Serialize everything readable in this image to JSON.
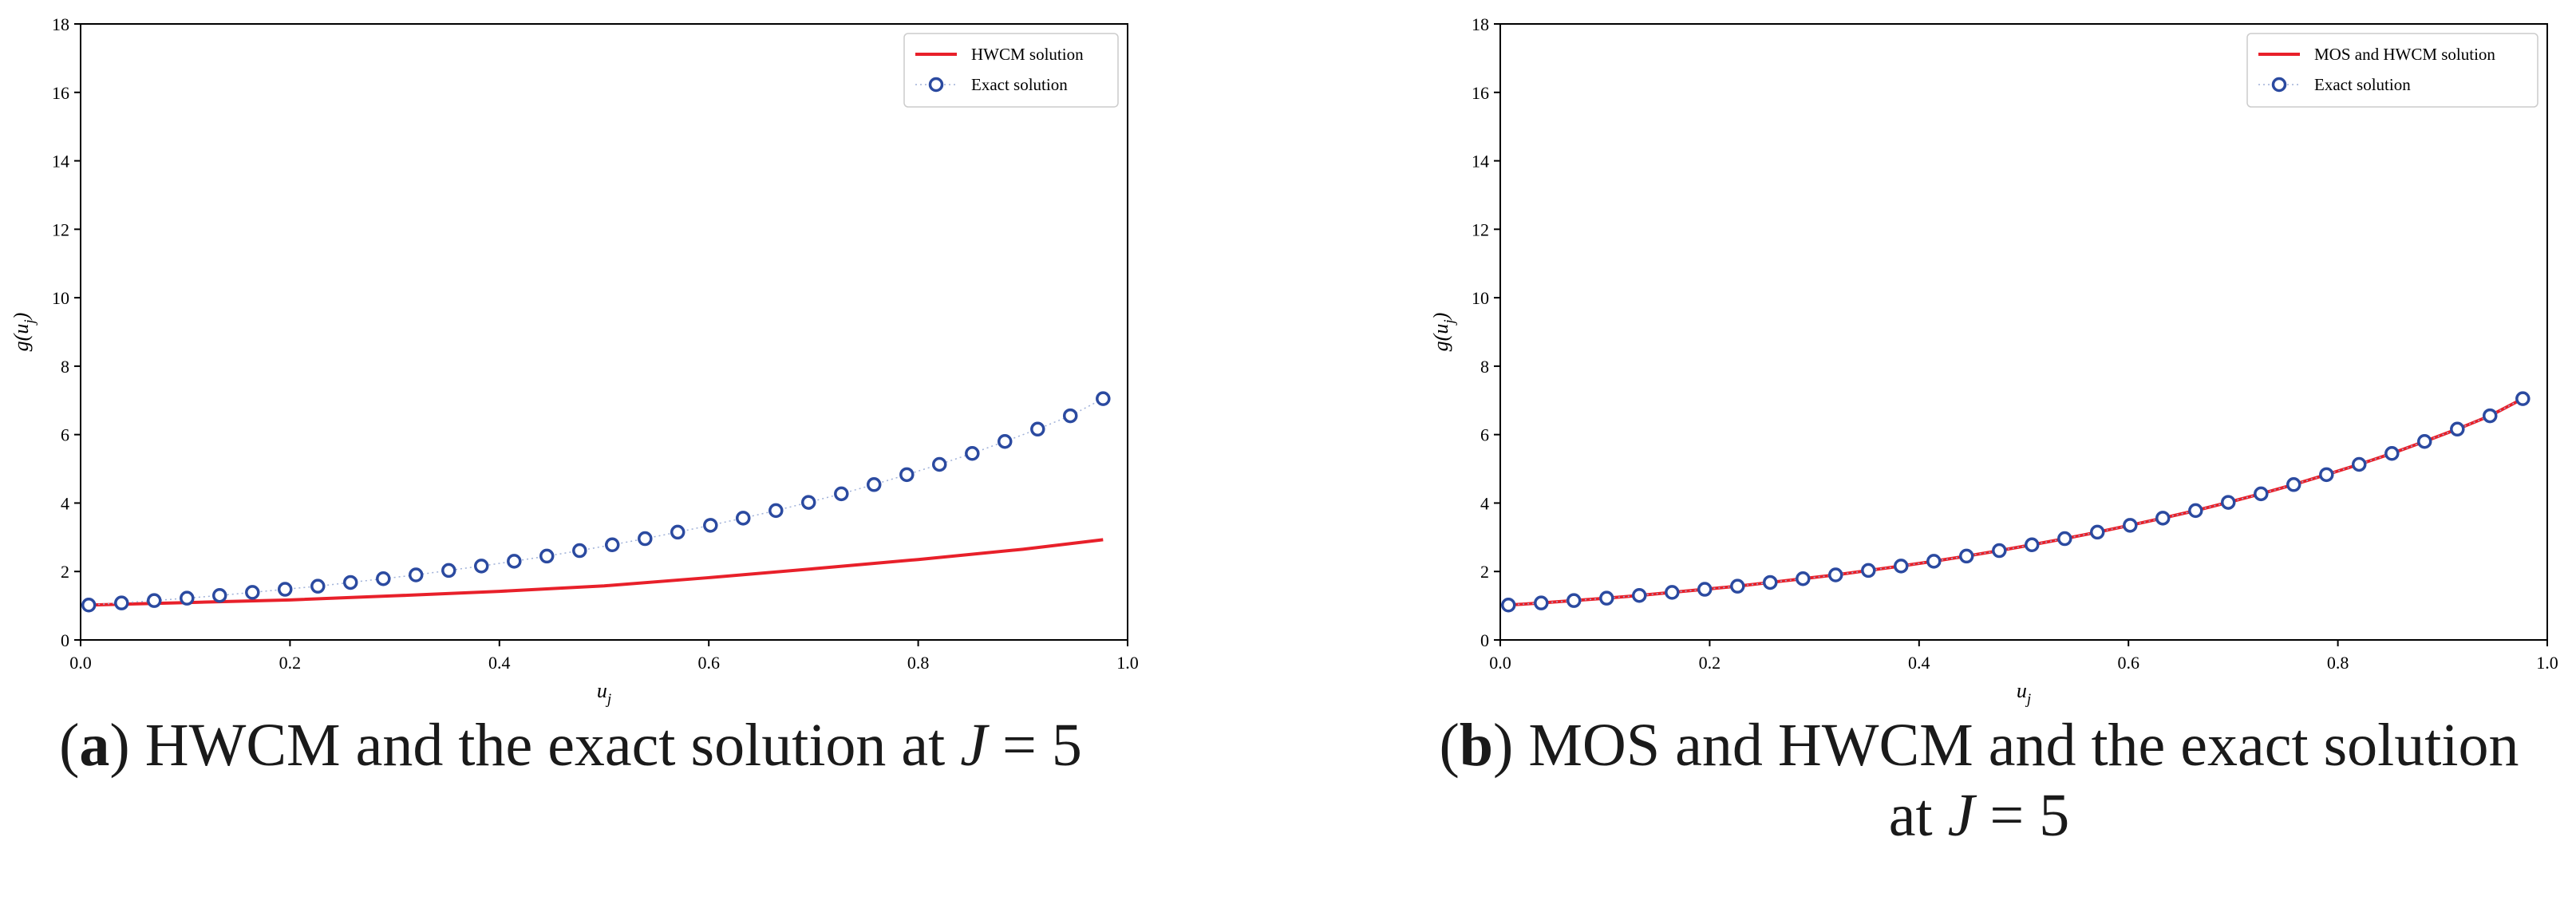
{
  "chart_data": [
    {
      "type": "line",
      "panel": "a",
      "xlabel": "u_j",
      "ylabel": "g(u_j)",
      "xlim": [
        0.0,
        1.0
      ],
      "ylim": [
        0,
        18
      ],
      "xticks": [
        "0.0",
        "0.2",
        "0.4",
        "0.6",
        "0.8",
        "1.0"
      ],
      "yticks": [
        "0",
        "2",
        "4",
        "6",
        "8",
        "10",
        "12",
        "14",
        "16",
        "18"
      ],
      "legend_position": "top-right",
      "series": [
        {
          "name": "HWCM solution",
          "style": "line",
          "color": "#e8202a",
          "x": [
            0.0078,
            0.1,
            0.2,
            0.3,
            0.4,
            0.5,
            0.6,
            0.7,
            0.8,
            0.9,
            0.9766
          ],
          "y": [
            1.02,
            1.09,
            1.17,
            1.29,
            1.42,
            1.58,
            1.82,
            2.08,
            2.35,
            2.65,
            2.93
          ]
        },
        {
          "name": "Exact solution",
          "style": "markers",
          "color": "#2b4aa0",
          "x": [
            0.0078,
            0.0391,
            0.0703,
            0.1016,
            0.1328,
            0.1641,
            0.1953,
            0.2266,
            0.2578,
            0.2891,
            0.3203,
            0.3516,
            0.3828,
            0.4141,
            0.4453,
            0.4766,
            0.5078,
            0.5391,
            0.5703,
            0.6016,
            0.6328,
            0.6641,
            0.6953,
            0.7266,
            0.7578,
            0.7891,
            0.8203,
            0.8516,
            0.8828,
            0.9141,
            0.9453,
            0.9766
          ],
          "y": [
            1.02,
            1.08,
            1.15,
            1.22,
            1.3,
            1.39,
            1.48,
            1.57,
            1.68,
            1.79,
            1.9,
            2.03,
            2.16,
            2.3,
            2.45,
            2.61,
            2.78,
            2.96,
            3.15,
            3.35,
            3.56,
            3.78,
            4.02,
            4.27,
            4.54,
            4.83,
            5.13,
            5.45,
            5.8,
            6.16,
            6.55,
            7.05
          ]
        }
      ]
    },
    {
      "type": "line",
      "panel": "b",
      "xlabel": "u_j",
      "ylabel": "g(u_j)",
      "xlim": [
        0.0,
        1.0
      ],
      "ylim": [
        0,
        18
      ],
      "xticks": [
        "0.0",
        "0.2",
        "0.4",
        "0.6",
        "0.8",
        "1.0"
      ],
      "yticks": [
        "0",
        "2",
        "4",
        "6",
        "8",
        "10",
        "12",
        "14",
        "16",
        "18"
      ],
      "legend_position": "top-right",
      "series": [
        {
          "name": "MOS and HWCM solution",
          "style": "line",
          "color": "#e8202a",
          "x": [
            0.0078,
            0.0391,
            0.0703,
            0.1016,
            0.1328,
            0.1641,
            0.1953,
            0.2266,
            0.2578,
            0.2891,
            0.3203,
            0.3516,
            0.3828,
            0.4141,
            0.4453,
            0.4766,
            0.5078,
            0.5391,
            0.5703,
            0.6016,
            0.6328,
            0.6641,
            0.6953,
            0.7266,
            0.7578,
            0.7891,
            0.8203,
            0.8516,
            0.8828,
            0.9141,
            0.9453,
            0.9766
          ],
          "y": [
            1.02,
            1.08,
            1.15,
            1.22,
            1.3,
            1.39,
            1.48,
            1.57,
            1.68,
            1.79,
            1.9,
            2.03,
            2.16,
            2.3,
            2.45,
            2.61,
            2.78,
            2.96,
            3.15,
            3.35,
            3.56,
            3.78,
            4.02,
            4.27,
            4.54,
            4.83,
            5.13,
            5.45,
            5.8,
            6.16,
            6.55,
            7.05
          ]
        },
        {
          "name": "Exact solution",
          "style": "markers",
          "color": "#2b4aa0",
          "x": [
            0.0078,
            0.0391,
            0.0703,
            0.1016,
            0.1328,
            0.1641,
            0.1953,
            0.2266,
            0.2578,
            0.2891,
            0.3203,
            0.3516,
            0.3828,
            0.4141,
            0.4453,
            0.4766,
            0.5078,
            0.5391,
            0.5703,
            0.6016,
            0.6328,
            0.6641,
            0.6953,
            0.7266,
            0.7578,
            0.7891,
            0.8203,
            0.8516,
            0.8828,
            0.9141,
            0.9453,
            0.9766
          ],
          "y": [
            1.02,
            1.08,
            1.15,
            1.22,
            1.3,
            1.39,
            1.48,
            1.57,
            1.68,
            1.79,
            1.9,
            2.03,
            2.16,
            2.3,
            2.45,
            2.61,
            2.78,
            2.96,
            3.15,
            3.35,
            3.56,
            3.78,
            4.02,
            4.27,
            4.54,
            4.83,
            5.13,
            5.45,
            5.8,
            6.16,
            6.55,
            7.05
          ]
        }
      ]
    }
  ],
  "captions": {
    "a": {
      "label": "a",
      "text": "HWCM and the exact solution at",
      "math": "J",
      "eq": "= 5"
    },
    "b": {
      "label": "b",
      "text_line1": "MOS and HWCM and the exact solution",
      "text_line2": "at",
      "math": "J",
      "eq": "= 5"
    }
  }
}
